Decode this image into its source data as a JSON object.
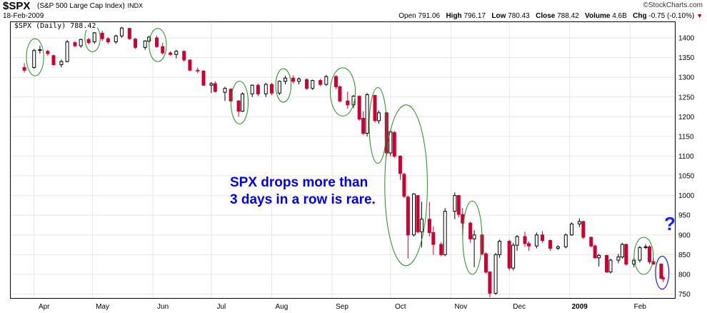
{
  "header": {
    "symbol": "$SPX",
    "name": "(S&P 500 Large Cap Index)",
    "exchange": "INDX",
    "date": "18-Feb-2009",
    "brand": "©StockCharts.com",
    "open_label": "Open",
    "open": "791.06",
    "high_label": "High",
    "high": "796.17",
    "low_label": "Low",
    "low": "780.43",
    "close_label": "Close",
    "close": "788.42",
    "volume_label": "Volume",
    "volume": "4.6B",
    "chg_label": "Chg",
    "chg": "-0.75 (-0.10%)"
  },
  "legend": "$SPX (Daily) 788.42",
  "annotation_lines": [
    "SPX drops more than",
    "3 days in a row is rare."
  ],
  "question_mark": "?",
  "colors": {
    "up": "#000000",
    "down": "#cc0033",
    "circle": "#228b22",
    "last_circle": "#1a1aff",
    "annotation": "#0000ee"
  },
  "chart_data": {
    "type": "candlestick",
    "title": "$SPX (Daily) 788.42",
    "ylim": [
      740,
      1440
    ],
    "y_ticks": [
      750,
      800,
      850,
      900,
      950,
      1000,
      1050,
      1100,
      1150,
      1200,
      1250,
      1300,
      1350,
      1400
    ],
    "x_labels": [
      "Apr",
      "May",
      "Jun",
      "Jul",
      "Aug",
      "Sep",
      "Oct",
      "Nov",
      "Dec",
      "2009",
      "Feb"
    ],
    "grid": true,
    "series": [
      {
        "values": [
          [
            "2008-03-27",
            1325,
            1336,
            1312,
            1318
          ],
          [
            "2008-04-01",
            1325,
            1372,
            1322,
            1368
          ],
          [
            "2008-04-04",
            1368,
            1380,
            1360,
            1370
          ],
          [
            "2008-04-08",
            1366,
            1370,
            1355,
            1360
          ],
          [
            "2008-04-11",
            1355,
            1358,
            1330,
            1332
          ],
          [
            "2008-04-15",
            1332,
            1345,
            1325,
            1340
          ],
          [
            "2008-04-18",
            1340,
            1395,
            1338,
            1390
          ],
          [
            "2008-04-22",
            1388,
            1392,
            1376,
            1380
          ],
          [
            "2008-04-25",
            1380,
            1398,
            1375,
            1396
          ],
          [
            "2008-04-29",
            1396,
            1400,
            1383,
            1388
          ],
          [
            "2008-05-02",
            1390,
            1415,
            1385,
            1413
          ],
          [
            "2008-05-06",
            1412,
            1418,
            1392,
            1398
          ],
          [
            "2008-05-09",
            1398,
            1402,
            1385,
            1390
          ],
          [
            "2008-05-13",
            1390,
            1408,
            1385,
            1405
          ],
          [
            "2008-05-16",
            1405,
            1428,
            1400,
            1425
          ],
          [
            "2008-05-20",
            1424,
            1426,
            1395,
            1398
          ],
          [
            "2008-05-23",
            1397,
            1400,
            1372,
            1376
          ],
          [
            "2008-05-28",
            1376,
            1394,
            1370,
            1392
          ],
          [
            "2008-05-30",
            1392,
            1405,
            1388,
            1402
          ],
          [
            "2008-06-03",
            1400,
            1406,
            1375,
            1378
          ],
          [
            "2008-06-06",
            1378,
            1388,
            1358,
            1362
          ],
          [
            "2008-06-10",
            1362,
            1366,
            1355,
            1358
          ],
          [
            "2008-06-13",
            1358,
            1370,
            1348,
            1366
          ],
          [
            "2008-06-17",
            1366,
            1368,
            1340,
            1344
          ],
          [
            "2008-06-20",
            1344,
            1346,
            1316,
            1318
          ],
          [
            "2008-06-24",
            1318,
            1325,
            1310,
            1316
          ],
          [
            "2008-06-27",
            1316,
            1318,
            1278,
            1280
          ],
          [
            "2008-07-01",
            1280,
            1288,
            1260,
            1284
          ],
          [
            "2008-07-03",
            1284,
            1290,
            1262,
            1264
          ],
          [
            "2008-07-08",
            1262,
            1276,
            1240,
            1272
          ],
          [
            "2008-07-11",
            1270,
            1272,
            1238,
            1240
          ],
          [
            "2008-07-15",
            1240,
            1242,
            1200,
            1214
          ],
          [
            "2008-07-17",
            1214,
            1262,
            1212,
            1258
          ],
          [
            "2008-07-22",
            1258,
            1282,
            1250,
            1280
          ],
          [
            "2008-07-25",
            1280,
            1284,
            1252,
            1258
          ],
          [
            "2008-07-29",
            1258,
            1286,
            1250,
            1282
          ],
          [
            "2008-08-01",
            1282,
            1286,
            1255,
            1260
          ],
          [
            "2008-08-05",
            1260,
            1292,
            1255,
            1290
          ],
          [
            "2008-08-08",
            1290,
            1304,
            1282,
            1298
          ],
          [
            "2008-08-12",
            1298,
            1305,
            1284,
            1290
          ],
          [
            "2008-08-15",
            1290,
            1300,
            1282,
            1296
          ],
          [
            "2008-08-19",
            1294,
            1298,
            1268,
            1272
          ],
          [
            "2008-08-22",
            1272,
            1294,
            1268,
            1292
          ],
          [
            "2008-08-26",
            1292,
            1296,
            1278,
            1282
          ],
          [
            "2008-08-29",
            1282,
            1306,
            1278,
            1302
          ],
          [
            "2008-09-03",
            1302,
            1306,
            1270,
            1276
          ],
          [
            "2008-09-05",
            1276,
            1280,
            1236,
            1240
          ],
          [
            "2008-09-09",
            1240,
            1264,
            1220,
            1230
          ],
          [
            "2008-09-12",
            1230,
            1255,
            1222,
            1252
          ],
          [
            "2008-09-15",
            1252,
            1254,
            1190,
            1194
          ],
          [
            "2008-09-17",
            1196,
            1214,
            1154,
            1158
          ],
          [
            "2008-09-19",
            1158,
            1260,
            1150,
            1256
          ],
          [
            "2008-09-23",
            1254,
            1256,
            1185,
            1190
          ],
          [
            "2008-09-25",
            1190,
            1216,
            1182,
            1210
          ],
          [
            "2008-09-29",
            1210,
            1212,
            1100,
            1108
          ],
          [
            "2008-10-01",
            1108,
            1166,
            1100,
            1162
          ],
          [
            "2008-10-03",
            1160,
            1164,
            1096,
            1100
          ],
          [
            "2008-10-06",
            1100,
            1102,
            1040,
            1056
          ],
          [
            "2008-10-08",
            1054,
            1058,
            994,
            998
          ],
          [
            "2008-10-10",
            996,
            1000,
            840,
            900
          ],
          [
            "2008-10-13",
            900,
            1006,
            896,
            1004
          ],
          [
            "2008-10-15",
            1000,
            1002,
            904,
            908
          ],
          [
            "2008-10-17",
            908,
            984,
            868,
            940
          ],
          [
            "2008-10-21",
            940,
            984,
            896,
            906
          ],
          [
            "2008-10-23",
            906,
            922,
            850,
            876
          ],
          [
            "2008-10-27",
            876,
            882,
            846,
            850
          ],
          [
            "2008-10-29",
            850,
            968,
            846,
            960
          ],
          [
            "2008-11-03",
            960,
            1008,
            940,
            1000
          ],
          [
            "2008-11-05",
            1000,
            1002,
            944,
            952
          ],
          [
            "2008-11-07",
            952,
            968,
            900,
            930
          ],
          [
            "2008-11-11",
            930,
            934,
            880,
            890
          ],
          [
            "2008-11-13",
            890,
            912,
            818,
            900
          ],
          [
            "2008-11-17",
            900,
            904,
            848,
            852
          ],
          [
            "2008-11-19",
            852,
            856,
            802,
            806
          ],
          [
            "2008-11-21",
            806,
            808,
            742,
            752
          ],
          [
            "2008-11-24",
            752,
            854,
            748,
            850
          ],
          [
            "2008-11-26",
            850,
            888,
            842,
            884
          ],
          [
            "2008-12-01",
            884,
            888,
            810,
            816
          ],
          [
            "2008-12-03",
            816,
            880,
            810,
            874
          ],
          [
            "2008-12-05",
            874,
            900,
            860,
            896
          ],
          [
            "2008-12-09",
            896,
            908,
            870,
            878
          ],
          [
            "2008-12-11",
            878,
            884,
            860,
            872
          ],
          [
            "2008-12-15",
            872,
            906,
            866,
            900
          ],
          [
            "2008-12-18",
            900,
            910,
            880,
            886
          ],
          [
            "2008-12-22",
            886,
            888,
            860,
            866
          ],
          [
            "2008-12-26",
            866,
            874,
            862,
            870
          ],
          [
            "2008-12-30",
            870,
            904,
            866,
            900
          ],
          [
            "2009-01-02",
            900,
            932,
            898,
            928
          ],
          [
            "2009-01-06",
            928,
            942,
            920,
            934
          ],
          [
            "2009-01-08",
            934,
            936,
            890,
            894
          ],
          [
            "2009-01-12",
            894,
            896,
            868,
            872
          ],
          [
            "2009-01-14",
            872,
            876,
            840,
            842
          ],
          [
            "2009-01-16",
            842,
            852,
            820,
            848
          ],
          [
            "2009-01-20",
            848,
            850,
            804,
            806
          ],
          [
            "2009-01-22",
            806,
            840,
            802,
            836
          ],
          [
            "2009-01-26",
            836,
            852,
            828,
            844
          ],
          [
            "2009-01-28",
            844,
            880,
            840,
            876
          ],
          [
            "2009-01-30",
            876,
            878,
            822,
            826
          ],
          [
            "2009-02-03",
            826,
            842,
            818,
            836
          ],
          [
            "2009-02-06",
            836,
            872,
            830,
            868
          ],
          [
            "2009-02-09",
            868,
            876,
            864,
            870
          ],
          [
            "2009-02-11",
            870,
            874,
            826,
            832
          ],
          [
            "2009-02-13",
            832,
            842,
            824,
            826
          ],
          [
            "2009-02-17",
            826,
            828,
            788,
            790
          ],
          [
            "2009-02-18",
            791.06,
            796.17,
            780.43,
            788.42
          ]
        ]
      }
    ],
    "highlighted_periods": [
      [
        "2008-03-31",
        "2008-04-03"
      ],
      [
        "2008-04-30",
        "2008-05-02"
      ],
      [
        "2008-06-02",
        "2008-06-05"
      ],
      [
        "2008-07-14",
        "2008-07-17"
      ],
      [
        "2008-08-06",
        "2008-08-08"
      ],
      [
        "2008-09-03",
        "2008-09-10"
      ],
      [
        "2008-09-23",
        "2008-09-26"
      ],
      [
        "2008-10-01",
        "2008-10-17"
      ],
      [
        "2008-11-10",
        "2008-11-14"
      ],
      [
        "2009-02-06",
        "2009-02-10"
      ],
      [
        "2009-02-17",
        "2009-02-18"
      ]
    ]
  }
}
